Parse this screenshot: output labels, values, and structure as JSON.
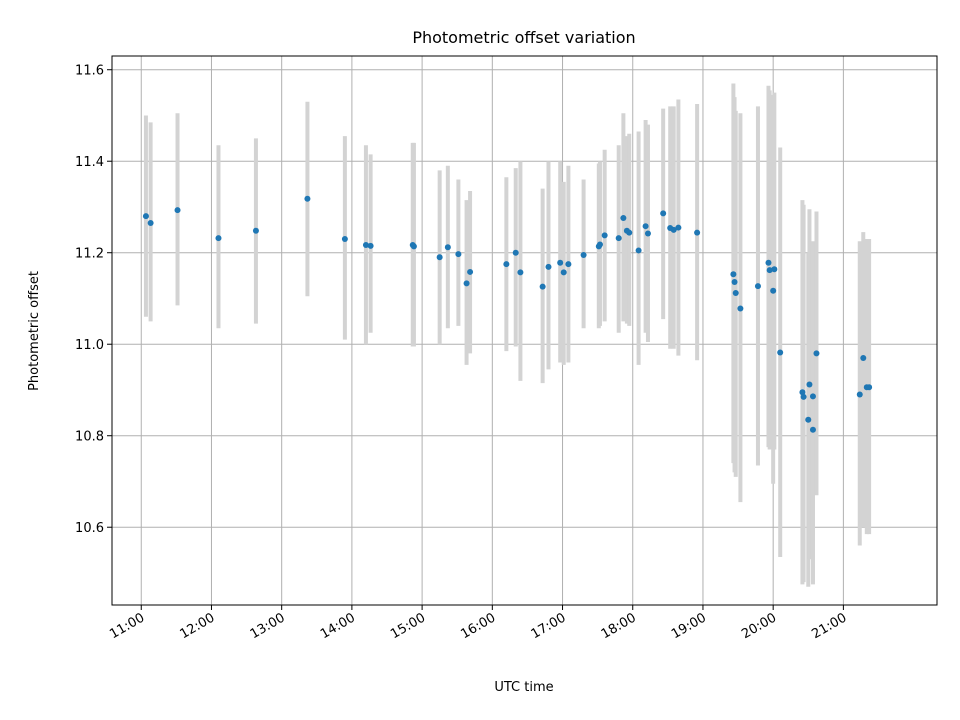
{
  "chart_data": {
    "type": "scatter",
    "title": "Photometric offset variation",
    "xlabel": "UTC time",
    "ylabel": "Photometric offset",
    "ylim": [
      10.43,
      11.63
    ],
    "xlim": [
      "10:35",
      "22:20"
    ],
    "xticks": [
      "11:00",
      "12:00",
      "13:00",
      "14:00",
      "15:00",
      "16:00",
      "17:00",
      "18:00",
      "19:00",
      "20:00",
      "21:00"
    ],
    "yticks": [
      "10.6",
      "10.8",
      "11.0",
      "11.2",
      "11.4",
      "11.6"
    ],
    "grid": true,
    "colors": {
      "points": "#1f77b4",
      "errorbars": "#d3d3d3"
    },
    "series": [
      {
        "x": [
          "11:04",
          "11:08",
          "11:31",
          "12:06",
          "12:38",
          "13:22",
          "13:54",
          "14:12",
          "14:16",
          "14:52",
          "14:53",
          "15:15",
          "15:22",
          "15:31",
          "15:38",
          "15:41",
          "16:12",
          "16:20",
          "16:24",
          "16:43",
          "16:48",
          "16:58",
          "17:01",
          "17:05",
          "17:18",
          "17:31",
          "17:32",
          "17:36",
          "17:48",
          "17:52",
          "17:55",
          "17:57",
          "18:05",
          "18:11",
          "18:13",
          "18:26",
          "18:32",
          "18:35",
          "18:39",
          "18:55",
          "19:26",
          "19:27",
          "19:28",
          "19:32",
          "19:47",
          "19:56",
          "19:57",
          "20:00",
          "20:01",
          "20:06",
          "20:25",
          "20:26",
          "20:30",
          "20:31",
          "20:34",
          "20:34",
          "20:37",
          "21:14",
          "21:17",
          "21:20",
          "21:22"
        ],
        "y": [
          11.28,
          11.265,
          11.293,
          11.232,
          11.248,
          11.318,
          11.23,
          11.217,
          11.215,
          11.217,
          11.214,
          11.19,
          11.212,
          11.197,
          11.133,
          11.158,
          11.175,
          11.2,
          11.157,
          11.126,
          11.169,
          11.178,
          11.157,
          11.175,
          11.195,
          11.214,
          11.218,
          11.238,
          11.232,
          11.276,
          11.248,
          11.244,
          11.205,
          11.258,
          11.242,
          11.286,
          11.254,
          11.25,
          11.255,
          11.244,
          11.153,
          11.136,
          11.112,
          11.078,
          11.127,
          11.178,
          11.162,
          11.117,
          11.164,
          10.982,
          10.895,
          10.885,
          10.835,
          10.912,
          10.813,
          10.886,
          10.98,
          10.89,
          10.97,
          10.906,
          10.906
        ],
        "yerr_low": [
          11.06,
          11.05,
          11.085,
          11.035,
          11.045,
          11.105,
          11.01,
          11.0,
          11.025,
          10.995,
          10.995,
          11.0,
          11.035,
          11.04,
          10.955,
          10.98,
          10.985,
          10.995,
          10.92,
          10.915,
          10.945,
          10.96,
          10.955,
          10.96,
          11.035,
          11.035,
          11.04,
          11.05,
          11.025,
          11.05,
          11.045,
          11.04,
          10.955,
          11.025,
          11.005,
          11.055,
          10.99,
          10.99,
          10.975,
          10.965,
          10.74,
          10.72,
          10.71,
          10.655,
          10.735,
          10.775,
          10.77,
          10.695,
          10.77,
          10.535,
          10.475,
          10.48,
          10.47,
          10.53,
          10.475,
          10.48,
          10.67,
          10.56,
          10.6,
          10.585,
          10.585
        ],
        "yerr_high": [
          11.5,
          11.485,
          11.505,
          11.435,
          11.45,
          11.53,
          11.455,
          11.435,
          11.415,
          11.44,
          11.44,
          11.38,
          11.39,
          11.36,
          11.315,
          11.335,
          11.365,
          11.385,
          11.4,
          11.34,
          11.4,
          11.4,
          11.355,
          11.39,
          11.36,
          11.395,
          11.4,
          11.425,
          11.435,
          11.505,
          11.455,
          11.46,
          11.465,
          11.49,
          11.48,
          11.515,
          11.52,
          11.52,
          11.535,
          11.525,
          11.57,
          11.54,
          11.51,
          11.505,
          11.52,
          11.565,
          11.555,
          11.545,
          11.55,
          11.43,
          11.315,
          11.305,
          11.2,
          11.295,
          11.15,
          11.225,
          11.29,
          11.225,
          11.245,
          11.23,
          11.23
        ]
      }
    ]
  }
}
